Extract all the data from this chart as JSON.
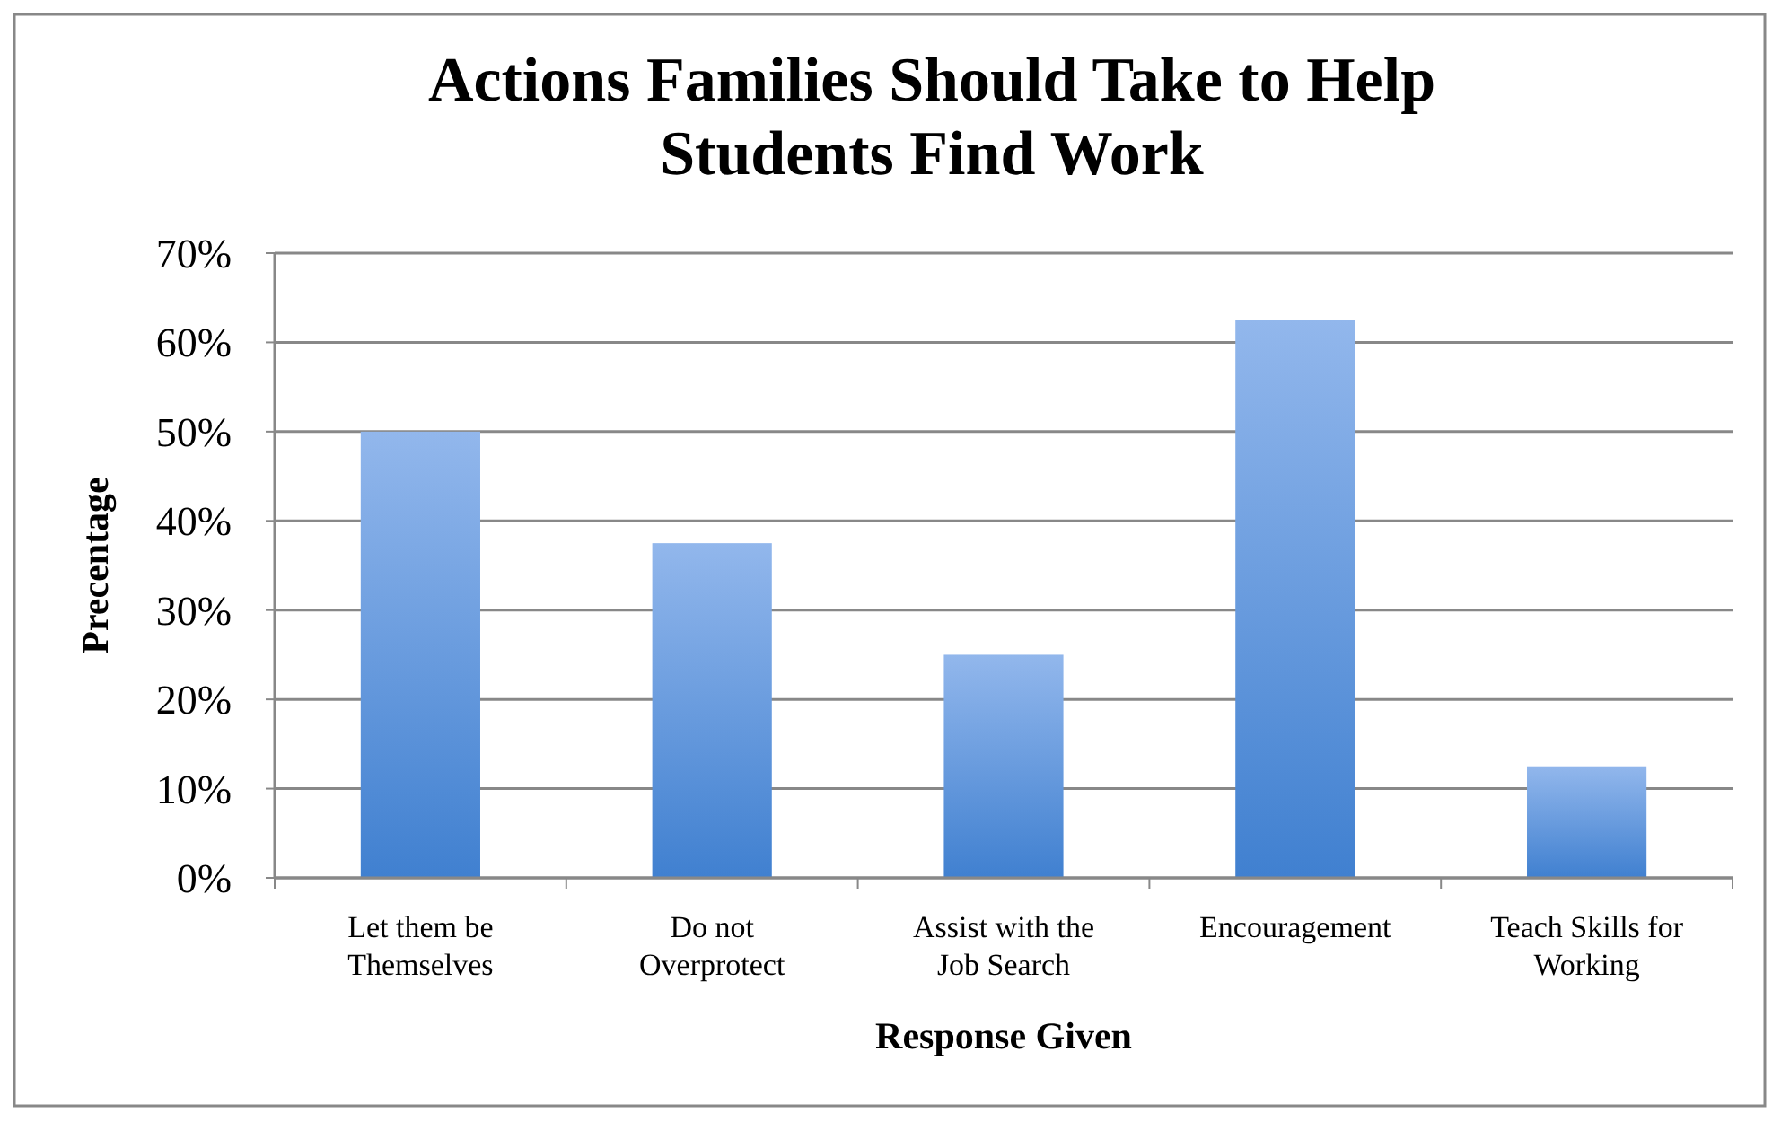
{
  "chart_data": {
    "type": "bar",
    "title": "Actions Families Should Take to Help Students Find Work",
    "xlabel": "Response Given",
    "ylabel": "Precentage",
    "categories": [
      "Let them be Themselves",
      "Do not Overprotect",
      "Assist with the Job Search",
      "Encouragement",
      "Teach Skills for Working"
    ],
    "values": [
      50,
      37.5,
      25,
      62.5,
      12.5
    ],
    "color": "#4080d0",
    "ylim": [
      0,
      70
    ],
    "yticks": [
      {
        "value": 0,
        "label": "0%"
      },
      {
        "value": 10,
        "label": "10%"
      },
      {
        "value": 20,
        "label": "20%"
      },
      {
        "value": 30,
        "label": "30%"
      },
      {
        "value": 40,
        "label": "40%"
      },
      {
        "value": 50,
        "label": "50%"
      },
      {
        "value": 60,
        "label": "60%"
      },
      {
        "value": 70,
        "label": "70%"
      }
    ],
    "grid": "y"
  }
}
